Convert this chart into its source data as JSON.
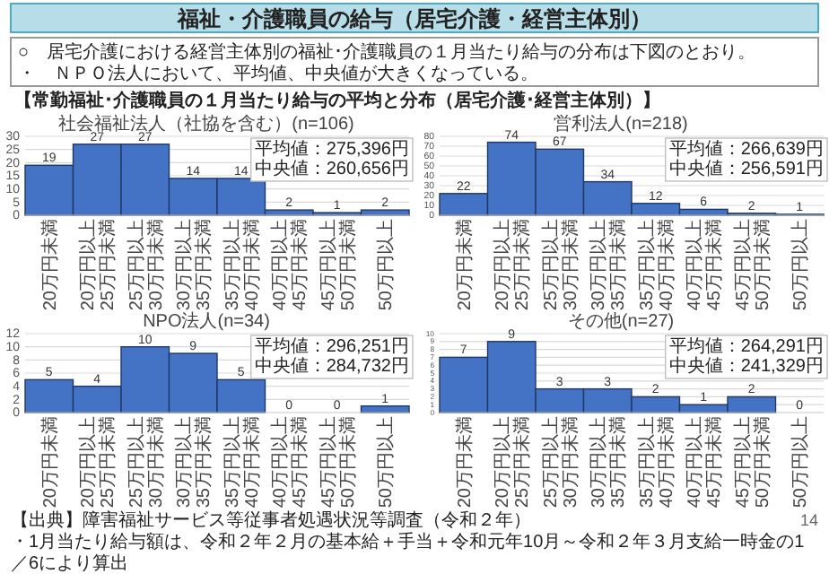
{
  "chart_data": [
    {
      "type": "other",
      "title": "福祉・介護職員の給与（居宅介護・経営主体別）",
      "annotations": [
        "○　居宅介護における経営主体別の福祉･介護職員の１月当たり給与の分布は下図のとおり。",
        "・　ＮＰＯ法人において、平均値、中央値が大きくなっている。",
        "【常勤福祉･介護職員の１月当たり給与の平均と分布（居宅介護･経営主体別）】",
        "【出典】障害福祉サービス等従事者処遇状況等調査（令和２年）",
        "・1月当たり給与額は、令和２年２月の基本給＋手当＋令和元年10月～令和２年３月支給一時金の1／6により算出",
        "14"
      ]
    },
    {
      "type": "bar",
      "title": "社会福祉法人（社協を含む）(n=106)",
      "categories": [
        "20万円未満",
        "20万円以上\n25万円未満",
        "25万円以上\n30万円未満",
        "30万円以上\n35万円未満",
        "35万円以上\n40万円未満",
        "40万円以上\n45万円未満",
        "45万円以上\n50万円未満",
        "50万円以上"
      ],
      "values": [
        19,
        27,
        27,
        14,
        14,
        2,
        1,
        2
      ],
      "color": "#4472c4",
      "ylim": [
        0,
        30
      ],
      "yticks": [
        0,
        5,
        10,
        15,
        20,
        25,
        30
      ],
      "grid": "y",
      "data_labels": true,
      "annotations": [
        "平均値：275,396円",
        "中央値：260,656円"
      ]
    },
    {
      "type": "bar",
      "title": "営利法人(n=218)",
      "categories": [
        "20万円未満",
        "20万円以上\n25万円未満",
        "25万円以上\n30万円未満",
        "30万円以上\n35万円未満",
        "35万円以上\n40万円未満",
        "40万円以上\n45万円未満",
        "45万円以上\n50万円未満",
        "50万円以上"
      ],
      "values": [
        22,
        74,
        67,
        34,
        12,
        6,
        2,
        1
      ],
      "color": "#4472c4",
      "ylim": [
        0,
        80
      ],
      "yticks": [
        0,
        10,
        20,
        30,
        40,
        50,
        60,
        70,
        80
      ],
      "grid": "y",
      "data_labels": true,
      "annotations": [
        "平均値：266,639円",
        "中央値：256,591円"
      ]
    },
    {
      "type": "bar",
      "title": "NPO法人(n=34)",
      "categories": [
        "20万円未満",
        "20万円以上\n25万円未満",
        "25万円以上\n30万円未満",
        "30万円以上\n35万円未満",
        "35万円以上\n40万円未満",
        "40万円以上\n45万円未満",
        "45万円以上\n50万円未満",
        "50万円以上"
      ],
      "values": [
        5,
        4,
        10,
        9,
        5,
        0,
        0,
        1
      ],
      "color": "#4472c4",
      "ylim": [
        0,
        12
      ],
      "yticks": [
        0,
        2,
        4,
        6,
        8,
        10,
        12
      ],
      "grid": "y",
      "data_labels": true,
      "annotations": [
        "平均値：296,251円",
        "中央値：284,732円"
      ]
    },
    {
      "type": "bar",
      "title": "その他(n=27)",
      "categories": [
        "20万円未満",
        "20万円以上\n25万円未満",
        "25万円以上\n30万円未満",
        "30万円以上\n35万円未満",
        "35万円以上\n40万円未満",
        "40万円以上\n45万円未満",
        "45万円以上\n50万円未満",
        "50万円以上"
      ],
      "values": [
        7,
        9,
        3,
        3,
        2,
        1,
        2,
        0
      ],
      "color": "#4472c4",
      "ylim": [
        0,
        10
      ],
      "yticks": [
        0,
        1,
        2,
        3,
        4,
        5,
        6,
        7,
        8,
        9,
        10
      ],
      "grid": "y",
      "data_labels": true,
      "annotations": [
        "平均値：264,291円",
        "中央値：241,329円"
      ]
    }
  ]
}
